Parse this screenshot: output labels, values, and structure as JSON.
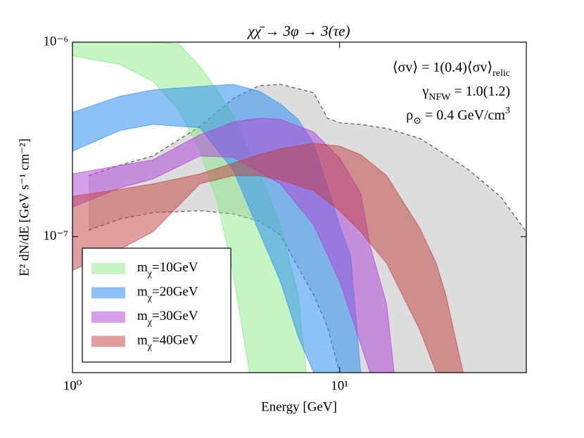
{
  "chart_data": {
    "type": "band",
    "title": "χχ̄ → 3φ → 3(τe)",
    "xlabel": "Energy [GeV]",
    "ylabel": "E² dN/dE [GeV s⁻¹ cm⁻²]",
    "xscale": "log",
    "yscale": "log",
    "xlim": [
      1,
      50
    ],
    "ylim": [
      2e-08,
      1e-06
    ],
    "xticks": [
      {
        "value": 1,
        "label": "10⁰"
      },
      {
        "value": 10,
        "label": "10¹"
      }
    ],
    "yticks": [
      {
        "value": 1e-07,
        "label": "10⁻⁷"
      },
      {
        "value": 1e-06,
        "label": "10⁻⁶"
      }
    ],
    "legend": "lower left",
    "annotations": [
      [
        {
          "text": "⟨σv⟩ =  1(0.4)⟨σv⟩"
        },
        {
          "text": "relic",
          "shift": "sub"
        }
      ],
      [
        {
          "text": "γ"
        },
        {
          "text": "NFW",
          "shift": "sub"
        },
        {
          "text": " = 1.0(1.2)"
        }
      ],
      [
        {
          "text": "ρ"
        },
        {
          "text": "⊙",
          "shift": "sub"
        },
        {
          "text": " = 0.4 GeV/cm"
        },
        {
          "text": "3",
          "shift": "super"
        }
      ]
    ],
    "series": [
      {
        "color": "#bbbbbb",
        "opacity": 0.5,
        "edgecolor": "#555555",
        "linestyle": "dashed",
        "x": [
          1.15,
          1.5,
          2,
          3,
          4,
          5,
          6,
          8,
          9,
          10,
          12,
          15,
          20,
          30,
          40,
          50
        ],
        "upper": [
          2.06e-07,
          2.33e-07,
          2.6e-07,
          3.69e-07,
          5.14e-07,
          5.97e-07,
          6.07e-07,
          5.5e-07,
          4.07e-07,
          3.85e-07,
          3.78e-07,
          3.6e-07,
          3.2e-07,
          2.24e-07,
          1.61e-07,
          1.06e-07
        ],
        "lower": [
          1.08e-07,
          1.23e-07,
          1.33e-07,
          1.36e-07,
          1.31e-07,
          1.2e-07,
          1.02e-07,
          5e-08,
          3.45e-08,
          2e-08,
          null,
          null,
          null,
          null,
          null,
          null
        ]
      },
      {
        "name": [
          {
            "text": "m"
          },
          {
            "text": "χ",
            "shift": "sub"
          },
          {
            "text": "=10GeV"
          }
        ],
        "color": "#7ee87e",
        "opacity": 0.45,
        "x": [
          1,
          1.5,
          2,
          2.5,
          3,
          3.5,
          4,
          4.6,
          5,
          6,
          7,
          7.5
        ],
        "upper": [
          1.04e-06,
          1.02e-06,
          1e-06,
          9.8e-07,
          7.5e-07,
          5.6e-07,
          4.2e-07,
          2.75e-07,
          2.15e-07,
          1.15e-07,
          5e-08,
          2e-08
        ],
        "lower": [
          8.5e-07,
          7.7e-07,
          6.3e-07,
          4.5e-07,
          2.75e-07,
          1.48e-07,
          6.4e-08,
          2e-08,
          null,
          null,
          null,
          null
        ]
      },
      {
        "name": [
          {
            "text": "m"
          },
          {
            "text": "χ",
            "shift": "sub"
          },
          {
            "text": "=20GeV"
          }
        ],
        "color": "#2f8ff0",
        "opacity": 0.55,
        "x": [
          1,
          1.5,
          2,
          3,
          4,
          5,
          6,
          7,
          8,
          10,
          11,
          12
        ],
        "upper": [
          4.35e-07,
          5.27e-07,
          5.68e-07,
          5.92e-07,
          6.07e-07,
          5.6e-07,
          4.81e-07,
          4.01e-07,
          3e-07,
          1.15e-07,
          7.9e-08,
          2e-08
        ],
        "lower": [
          2.75e-07,
          3.51e-07,
          3.78e-07,
          3.63e-07,
          2.2e-07,
          1.06e-07,
          5.9e-08,
          3.05e-08,
          2e-08,
          null,
          null,
          null
        ]
      },
      {
        "name": [
          {
            "text": "m"
          },
          {
            "text": "χ",
            "shift": "sub"
          },
          {
            "text": "=30GeV"
          }
        ],
        "color": "#b040d8",
        "opacity": 0.5,
        "x": [
          1,
          1.5,
          2,
          3,
          4,
          5,
          6,
          8,
          10,
          12,
          13,
          15,
          16
        ],
        "upper": [
          2.1e-07,
          2.32e-07,
          2.48e-07,
          3.34e-07,
          3.88e-07,
          4.07e-07,
          4.01e-07,
          3.45e-07,
          2.54e-07,
          1.67e-07,
          9e-08,
          4.5e-08,
          2e-08
        ],
        "lower": [
          1.42e-07,
          1.78e-07,
          1.98e-07,
          2.6e-07,
          2.56e-07,
          2.15e-07,
          1.87e-07,
          1.15e-07,
          5.9e-08,
          2.8e-08,
          2e-08,
          null,
          null
        ]
      },
      {
        "name": [
          {
            "text": "m"
          },
          {
            "text": "χ",
            "shift": "sub"
          },
          {
            "text": "=40GeV"
          }
        ],
        "color": "#c04040",
        "opacity": 0.5,
        "x": [
          1,
          1.5,
          2,
          3,
          4,
          5,
          6,
          8,
          10,
          12,
          15,
          20,
          23,
          25,
          29
        ],
        "upper": [
          1.61e-07,
          1.75e-07,
          1.87e-07,
          2.1e-07,
          2.39e-07,
          2.64e-07,
          2.83e-07,
          3.02e-07,
          2.92e-07,
          2.64e-07,
          2.06e-07,
          1.1e-07,
          7.3e-08,
          5e-08,
          2e-08
        ],
        "lower": [
          6.7e-08,
          8.6e-08,
          1.06e-07,
          1.87e-07,
          2.06e-07,
          2.06e-07,
          1.96e-07,
          1.72e-07,
          1.36e-07,
          1.06e-07,
          7.3e-08,
          3.3e-08,
          2e-08,
          null,
          null
        ]
      }
    ]
  }
}
